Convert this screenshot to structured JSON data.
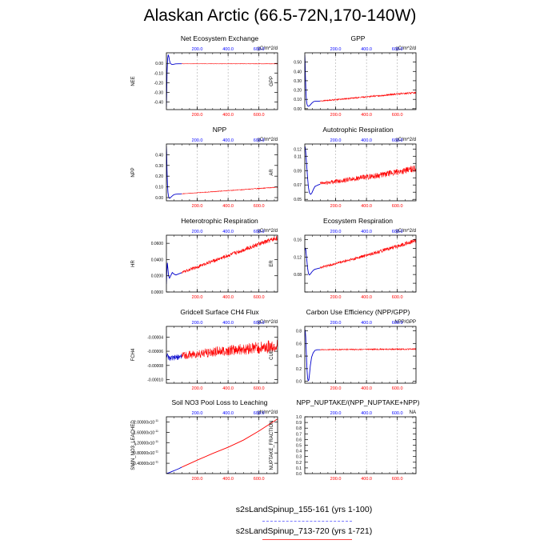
{
  "title": "Alaskan Arctic (66.5-72N,170-140W)",
  "legend": [
    {
      "label": "s2sLandSpinup_155-161 (yrs 1-100)",
      "color": "#7777ff",
      "style": "dashed"
    },
    {
      "label": "s2sLandSpinup_713-720 (yrs 1-721)",
      "color": "#ff4444",
      "style": "solid"
    }
  ],
  "chart_data": [
    {
      "type": "line",
      "title": "Net Ecosystem Exchange",
      "ylabel": "NEE",
      "units": "gC/m^2/d",
      "xlim": [
        0,
        721
      ],
      "ylim": [
        -0.48,
        0.11
      ],
      "yticks": [
        0.0,
        -0.1,
        -0.2,
        -0.3,
        -0.4
      ],
      "ytick_labels": [
        "0.00",
        "-0.10",
        "-0.20",
        "-0.30",
        "-0.40"
      ],
      "series": [
        {
          "color": "#0000cc",
          "x": [
            0,
            2,
            4,
            8,
            12,
            16,
            20,
            26,
            34,
            45,
            60,
            80,
            100
          ],
          "y": [
            -0.45,
            -0.3,
            -0.1,
            0.05,
            0.09,
            0.07,
            0.03,
            0.0,
            -0.01,
            -0.01,
            -0.005,
            -0.004,
            -0.004
          ]
        },
        {
          "color": "#ff0000",
          "x": [
            100,
            200,
            300,
            400,
            500,
            600,
            721
          ],
          "y": [
            -0.004,
            -0.004,
            -0.004,
            -0.004,
            -0.004,
            -0.004,
            -0.004
          ],
          "band": 0.002
        }
      ]
    },
    {
      "type": "line",
      "title": "GPP",
      "ylabel": "GPP",
      "units": "gC/m^2/d",
      "xlim": [
        0,
        721
      ],
      "ylim": [
        -0.01,
        0.6
      ],
      "yticks": [
        0.0,
        0.1,
        0.2,
        0.3,
        0.4,
        0.5
      ],
      "ytick_labels": [
        "0.00",
        "0.10",
        "0.20",
        "0.30",
        "0.40",
        "0.50"
      ],
      "series": [
        {
          "color": "#0000cc",
          "x": [
            0,
            2,
            4,
            7,
            10,
            14,
            18,
            24,
            30,
            38,
            46,
            56,
            66,
            76,
            86,
            100
          ],
          "y": [
            0.58,
            0.5,
            0.35,
            0.2,
            0.1,
            0.05,
            0.03,
            0.025,
            0.03,
            0.045,
            0.06,
            0.075,
            0.08,
            0.08,
            0.08,
            0.082
          ]
        },
        {
          "color": "#ff0000",
          "x": [
            100,
            200,
            300,
            400,
            500,
            600,
            721
          ],
          "y": [
            0.082,
            0.097,
            0.112,
            0.127,
            0.142,
            0.157,
            0.172
          ],
          "band": 0.008
        }
      ]
    },
    {
      "type": "line",
      "title": "NPP",
      "ylabel": "NPP",
      "units": "gC/m^2/d",
      "xlim": [
        0,
        721
      ],
      "ylim": [
        -0.03,
        0.5
      ],
      "yticks": [
        0.0,
        0.1,
        0.2,
        0.3,
        0.4
      ],
      "ytick_labels": [
        "0.00",
        "0.10",
        "0.20",
        "0.30",
        "0.40"
      ],
      "series": [
        {
          "color": "#0000cc",
          "x": [
            0,
            2,
            4,
            7,
            10,
            14,
            18,
            24,
            30,
            38,
            46,
            56,
            66,
            76,
            86,
            100
          ],
          "y": [
            0.48,
            0.4,
            0.25,
            0.12,
            0.05,
            0.01,
            -0.005,
            -0.005,
            0.005,
            0.015,
            0.025,
            0.03,
            0.032,
            0.033,
            0.034,
            0.035
          ]
        },
        {
          "color": "#ff0000",
          "x": [
            100,
            200,
            300,
            400,
            500,
            600,
            721
          ],
          "y": [
            0.035,
            0.045,
            0.055,
            0.065,
            0.075,
            0.085,
            0.097
          ],
          "band": 0.003
        }
      ]
    },
    {
      "type": "line",
      "title": "Autotrophic Respiration",
      "ylabel": "AR",
      "units": "gC/m^2/d",
      "xlim": [
        0,
        721
      ],
      "ylim": [
        0.048,
        0.127
      ],
      "yticks": [
        0.05,
        0.06,
        0.07,
        0.08,
        0.09,
        0.1,
        0.11,
        0.12
      ],
      "ytick_labels": [
        "0.05",
        "",
        "0.07",
        "",
        "0.09",
        "",
        "0.11",
        "0.12"
      ],
      "series": [
        {
          "color": "#0000cc",
          "x": [
            0,
            3,
            6,
            10,
            14,
            18,
            24,
            30,
            38,
            46,
            56,
            66,
            76,
            86,
            100
          ],
          "y": [
            0.124,
            0.122,
            0.116,
            0.104,
            0.092,
            0.08,
            0.066,
            0.059,
            0.057,
            0.059,
            0.064,
            0.068,
            0.069,
            0.07,
            0.071
          ]
        },
        {
          "color": "#ff0000",
          "x": [
            100,
            200,
            300,
            400,
            500,
            600,
            721
          ],
          "y": [
            0.072,
            0.075,
            0.078,
            0.081,
            0.084,
            0.088,
            0.093
          ],
          "band": 0.004
        }
      ]
    },
    {
      "type": "line",
      "title": "Heterotrophic Respiration",
      "ylabel": "HR",
      "units": "gC/m^2/d",
      "xlim": [
        0,
        721
      ],
      "ylim": [
        0,
        0.07
      ],
      "yticks": [
        0.0,
        0.02,
        0.04,
        0.06
      ],
      "ytick_labels": [
        "0.0000",
        "0.0200",
        "0.0400",
        "0.0600"
      ],
      "series": [
        {
          "color": "#0000cc",
          "x": [
            0,
            3,
            6,
            9,
            14,
            20,
            28,
            38,
            50,
            62,
            75,
            88,
            100
          ],
          "y": [
            0.01,
            0.027,
            0.036,
            0.03,
            0.02,
            0.017,
            0.02,
            0.024,
            0.022,
            0.021,
            0.022,
            0.023,
            0.024
          ]
        },
        {
          "color": "#ff0000",
          "x": [
            100,
            200,
            300,
            400,
            500,
            600,
            721
          ],
          "y": [
            0.024,
            0.031,
            0.038,
            0.045,
            0.052,
            0.059,
            0.067
          ],
          "band": 0.0025
        }
      ]
    },
    {
      "type": "line",
      "title": "Ecosystem Respiration",
      "ylabel": "ER",
      "units": "gC/m^2/d",
      "xlim": [
        0,
        721
      ],
      "ylim": [
        0.04,
        0.17
      ],
      "yticks": [
        0.04,
        0.06,
        0.08,
        0.1,
        0.12,
        0.14,
        0.16
      ],
      "ytick_labels": [
        "",
        "",
        "0.08",
        "",
        "0.12",
        "",
        "0.16"
      ],
      "series": [
        {
          "color": "#0000cc",
          "x": [
            0,
            3,
            6,
            10,
            14,
            18,
            24,
            30,
            38,
            46,
            56,
            66,
            76,
            86,
            100
          ],
          "y": [
            0.135,
            0.14,
            0.138,
            0.124,
            0.11,
            0.095,
            0.082,
            0.079,
            0.082,
            0.086,
            0.09,
            0.092,
            0.093,
            0.094,
            0.095
          ]
        },
        {
          "color": "#ff0000",
          "x": [
            100,
            200,
            300,
            400,
            500,
            600,
            721
          ],
          "y": [
            0.096,
            0.105,
            0.114,
            0.124,
            0.134,
            0.145,
            0.158
          ],
          "band": 0.004
        }
      ]
    },
    {
      "type": "line",
      "title": "Gridcell Surface CH4 Flux",
      "ylabel": "FCH4",
      "units": "gC/m^2/d",
      "xlim": [
        0,
        721
      ],
      "ylim": [
        -0.000105,
        -2.5e-05
      ],
      "yticks": [
        -4e-05,
        -6e-05,
        -8e-05,
        -0.0001
      ],
      "ytick_labels": [
        "-0.00004",
        "-0.00006",
        "-0.00008",
        "-0.00010"
      ],
      "series": [
        {
          "color": "#0000cc",
          "x": [
            0,
            10,
            20,
            40,
            60,
            80,
            100
          ],
          "y": [
            -6.4e-05,
            -6.8e-05,
            -7e-05,
            -7e-05,
            -6.9e-05,
            -6.8e-05,
            -6.7e-05
          ],
          "band": 6e-06
        },
        {
          "color": "#ff0000",
          "x": [
            100,
            200,
            300,
            400,
            500,
            600,
            721
          ],
          "y": [
            -6.6e-05,
            -6.4e-05,
            -6.1e-05,
            -5.9e-05,
            -5.7e-05,
            -5.5e-05,
            -5.3e-05
          ],
          "band": 8e-06
        }
      ]
    },
    {
      "type": "line",
      "title": "Carbon Use Efficiency (NPP/GPP)",
      "ylabel": "CUE",
      "units": "NPP/GPP",
      "xlim": [
        0,
        721
      ],
      "ylim": [
        -0.03,
        0.87
      ],
      "yticks": [
        0.0,
        0.2,
        0.4,
        0.6,
        0.8
      ],
      "ytick_labels": [
        "0.0",
        "0.2",
        "0.4",
        "0.6",
        "0.8"
      ],
      "series": [
        {
          "color": "#0000cc",
          "x": [
            0,
            3,
            6,
            10,
            14,
            18,
            22,
            26,
            30,
            36,
            44,
            54,
            66,
            80,
            100
          ],
          "y": [
            0.82,
            0.8,
            0.7,
            0.45,
            0.2,
            0.05,
            0.01,
            0.02,
            0.1,
            0.25,
            0.38,
            0.45,
            0.49,
            0.5,
            0.5
          ]
        },
        {
          "color": "#ff0000",
          "x": [
            100,
            200,
            300,
            400,
            500,
            600,
            721
          ],
          "y": [
            0.5,
            0.503,
            0.505,
            0.506,
            0.508,
            0.509,
            0.51
          ],
          "band": 0.01
        }
      ]
    },
    {
      "type": "line",
      "title": "Soil NO3 Pool Loss to Leaching",
      "ylabel": "SMIN_NO3_LEACHED",
      "units": "gN/m^2/d",
      "xlim": [
        0,
        721
      ],
      "ylim": [
        0,
        2.2e-11
      ],
      "yticks": [
        4e-12,
        8e-12,
        1.2e-11,
        1.6e-11,
        2e-11
      ],
      "ytick_labels": [
        "0.40000x10",
        "0.80000x10",
        "1.20000x10",
        "1.60000x10",
        "2.00000x10"
      ],
      "ytick_exponent": "-11",
      "series": [
        {
          "color": "#0000cc",
          "x": [
            0,
            20,
            40,
            60,
            80,
            100
          ],
          "y": [
            0,
            4e-13,
            9e-13,
            1.4e-12,
            1.9e-12,
            2.5e-12
          ]
        },
        {
          "color": "#ff0000",
          "x": [
            100,
            200,
            300,
            400,
            500,
            600,
            721
          ],
          "y": [
            2.5e-12,
            5.2e-12,
            7.8e-12,
            1.02e-11,
            1.3e-11,
            1.65e-11,
            2.12e-11
          ]
        }
      ]
    },
    {
      "type": "line",
      "title": "NPP_NUPTAKE/(NPP_NUPTAKE+NPP)",
      "ylabel": "NUPTAKE_FRACTION",
      "units": "NA",
      "xlim": [
        0,
        721
      ],
      "ylim": [
        0,
        1
      ],
      "yticks": [
        0.0,
        0.1,
        0.2,
        0.3,
        0.4,
        0.5,
        0.6,
        0.7,
        0.8,
        0.9,
        1.0
      ],
      "ytick_labels": [
        "0.0",
        "0.1",
        "0.2",
        "0.3",
        "0.4",
        "0.5",
        "0.6",
        "0.7",
        "0.8",
        "0.9",
        "1.0"
      ],
      "series": []
    }
  ],
  "bottom_xticks": [
    200,
    400,
    600
  ],
  "bottom_xtick_labels": [
    "200.0",
    "400.0",
    "600.0"
  ],
  "top_xticks": [
    20,
    40,
    60
  ],
  "top_xtick_labels": [
    "200.0",
    "400.0",
    "600.0"
  ],
  "top_xlim": [
    0,
    72.1
  ],
  "colors": {
    "blue_axis": "#0000ff",
    "red_axis": "#ff0000",
    "gridline": "#999999"
  }
}
